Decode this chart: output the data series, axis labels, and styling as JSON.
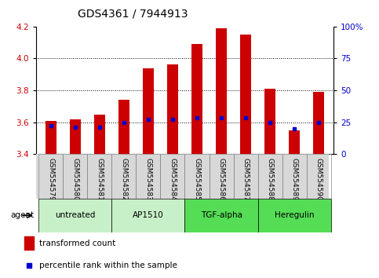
{
  "title": "GDS4361 / 7944913",
  "samples": [
    "GSM554579",
    "GSM554580",
    "GSM554581",
    "GSM554582",
    "GSM554583",
    "GSM554584",
    "GSM554585",
    "GSM554586",
    "GSM554587",
    "GSM554588",
    "GSM554589",
    "GSM554590"
  ],
  "bar_values": [
    3.61,
    3.62,
    3.65,
    3.74,
    3.94,
    3.96,
    4.09,
    4.19,
    4.15,
    3.81,
    3.55,
    3.79
  ],
  "bar_bottom": 3.4,
  "percentile_values": [
    3.58,
    3.57,
    3.57,
    3.6,
    3.62,
    3.62,
    3.63,
    3.63,
    3.63,
    3.6,
    3.56,
    3.6
  ],
  "bar_color": "#cc0000",
  "dot_color": "#0000cc",
  "ylim": [
    3.4,
    4.2
  ],
  "yticks_left": [
    3.4,
    3.6,
    3.8,
    4.0,
    4.2
  ],
  "yticks_right_vals": [
    0,
    25,
    50,
    75,
    100
  ],
  "yticks_right_labels": [
    "0",
    "25",
    "50",
    "75",
    "100%"
  ],
  "grid_values": [
    3.6,
    3.8,
    4.0
  ],
  "agents": [
    {
      "label": "untreated",
      "start": 0,
      "end": 3,
      "color": "#c8f0c8"
    },
    {
      "label": "AP1510",
      "start": 3,
      "end": 6,
      "color": "#c8f0c8"
    },
    {
      "label": "TGF-alpha",
      "start": 6,
      "end": 9,
      "color": "#55dd55"
    },
    {
      "label": "Heregulin",
      "start": 9,
      "end": 12,
      "color": "#55dd55"
    }
  ],
  "legend_bar_label": "transformed count",
  "legend_dot_label": "percentile rank within the sample",
  "agent_label": "agent",
  "title_fontsize": 10,
  "tick_fontsize": 7.5,
  "sample_fontsize": 6.5,
  "bar_width": 0.45
}
